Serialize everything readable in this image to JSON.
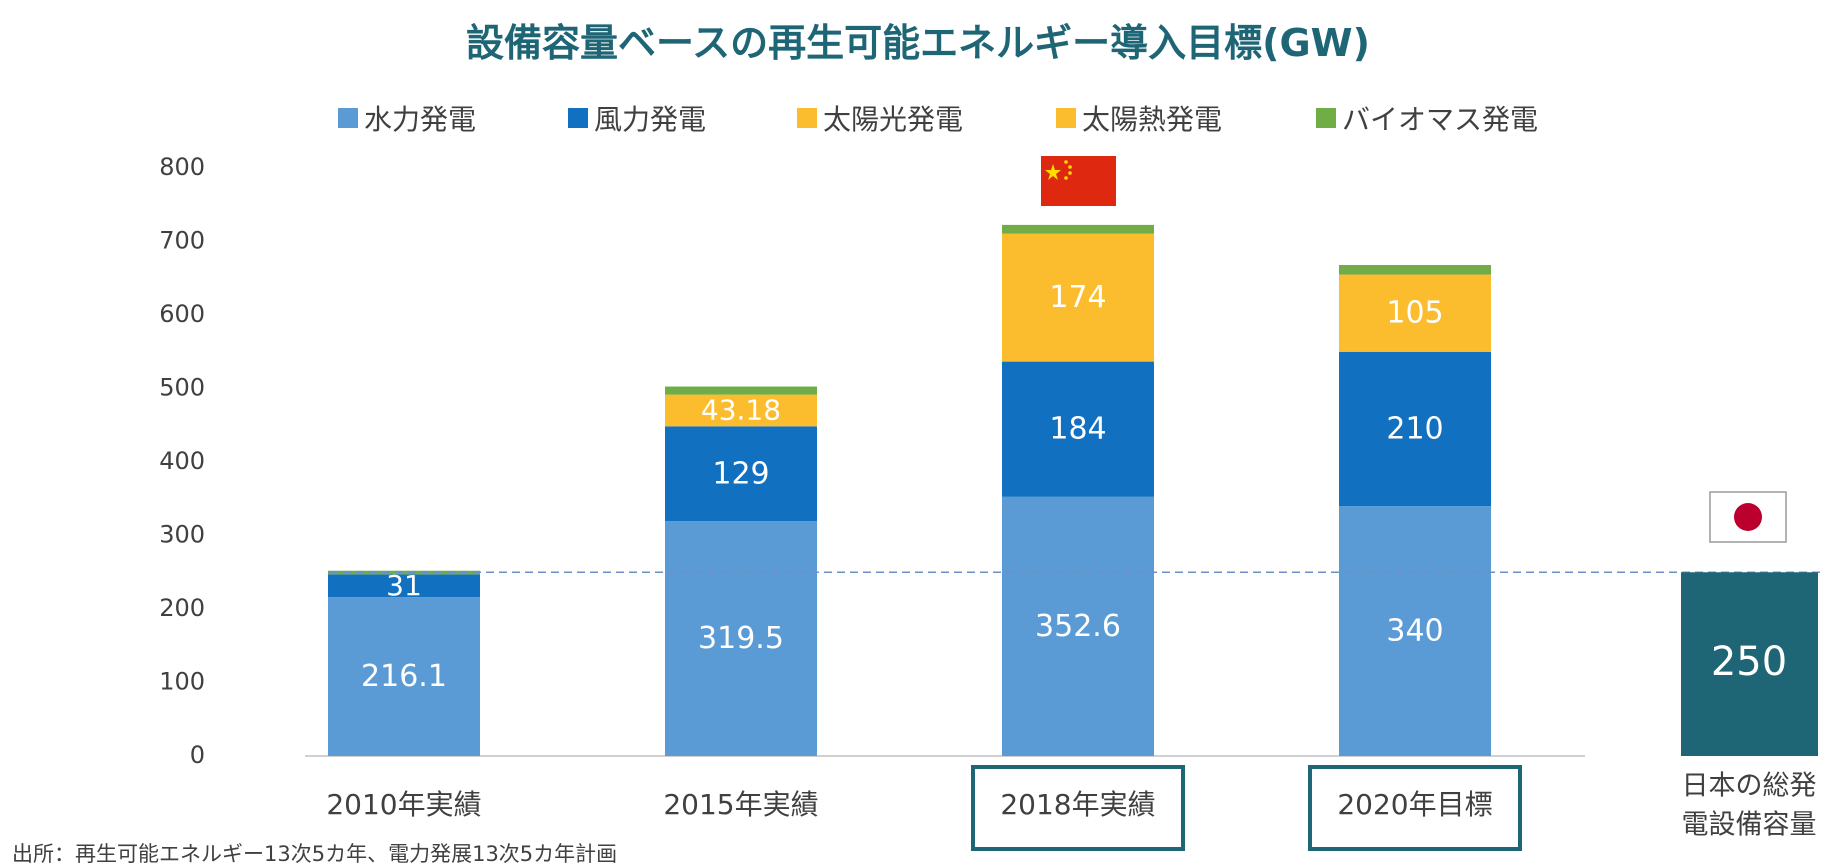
{
  "title": "設備容量ベースの再生可能エネルギー導入目標(GW)",
  "source": "出所：再生可能エネルギー13次5カ年、電力発展13次5カ年計画",
  "legend": [
    {
      "label": "水力発電",
      "color": "#5b9bd5"
    },
    {
      "label": "風力発電",
      "color": "#1170c0"
    },
    {
      "label": "太陽光発電",
      "color": "#fbbd2e"
    },
    {
      "label": "太陽熱発電",
      "color": "#fbbd2e"
    },
    {
      "label": "バイオマス発電",
      "color": "#70ad47"
    }
  ],
  "chart_data": {
    "type": "bar",
    "stacked": true,
    "ylim": [
      0,
      800
    ],
    "yticks": [
      0,
      100,
      200,
      300,
      400,
      500,
      600,
      700,
      800
    ],
    "grid": false,
    "legend_position": "top",
    "categories": [
      "2010年実績",
      "2015年実績",
      "2018年実績",
      "2020年目標"
    ],
    "highlighted_categories": [
      "2018年実績",
      "2020年目標"
    ],
    "series": [
      {
        "name": "水力発電",
        "color": "#5b9bd5",
        "values": [
          216.1,
          319.5,
          352.6,
          340
        ],
        "labels": [
          "216.1",
          "319.5",
          "352.6",
          "340"
        ]
      },
      {
        "name": "風力発電",
        "color": "#1170c0",
        "values": [
          31,
          129,
          184,
          210
        ],
        "labels": [
          "31",
          "129",
          "184",
          "210"
        ]
      },
      {
        "name": "太陽光発電",
        "color": "#fbbd2e",
        "values": [
          0,
          43.18,
          174,
          105
        ],
        "labels": [
          "",
          "43.18",
          "174",
          "105"
        ]
      },
      {
        "name": "太陽熱発電",
        "color": "#fbbd2e",
        "values": [
          0,
          0,
          0,
          0
        ],
        "labels": [
          "",
          "",
          "",
          ""
        ]
      },
      {
        "name": "バイオマス発電",
        "color": "#70ad47",
        "values": [
          5,
          11,
          12,
          13
        ],
        "labels": [
          "",
          "",
          "",
          ""
        ]
      }
    ],
    "reference": {
      "label": "日本の総発電設備容量",
      "label_lines": [
        "日本の総発",
        "電設備容量"
      ],
      "value": 250,
      "value_label": "250",
      "color": "#1e6576"
    },
    "flags": {
      "above_2018": "china-flag",
      "above_reference": "japan-flag"
    }
  }
}
